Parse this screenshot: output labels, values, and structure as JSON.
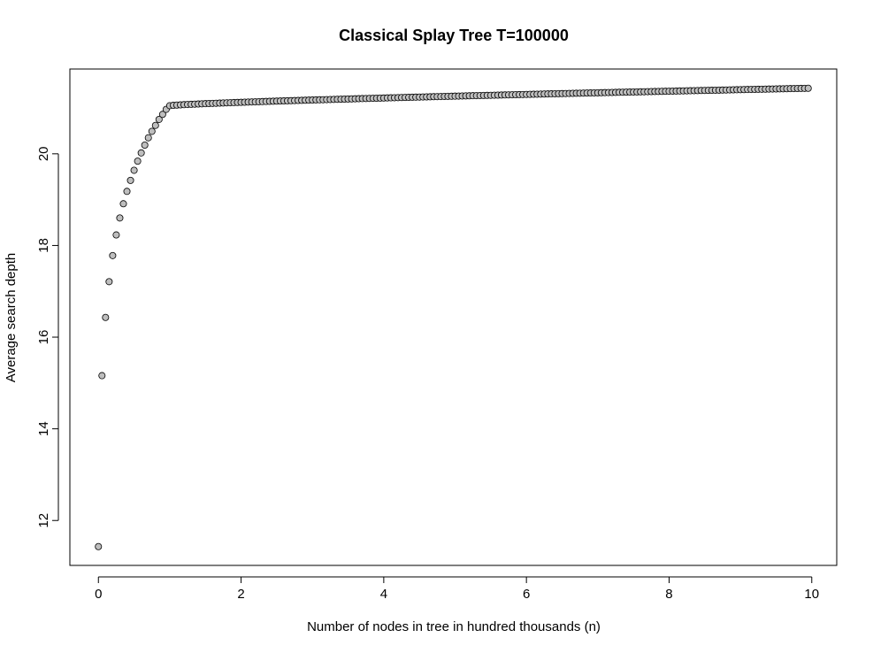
{
  "chart_data": {
    "type": "scatter",
    "title": "Classical Splay Tree T=100000",
    "xlabel": "Number of nodes in tree in hundred thousands (n)",
    "ylabel": "Average search depth",
    "xlim": [
      -0.4,
      10.35
    ],
    "ylim": [
      11.02,
      21.85
    ],
    "xticks": [
      0,
      2,
      4,
      6,
      8,
      10
    ],
    "yticks": [
      12,
      14,
      16,
      18,
      20
    ],
    "xtick_labels": [
      "0",
      "2",
      "4",
      "6",
      "8",
      "10"
    ],
    "ytick_labels": [
      "12",
      "14",
      "16",
      "18",
      "20"
    ],
    "grid": false,
    "legend": "none",
    "point_fill": "#bebebe",
    "point_stroke": "#000000",
    "early_points": [
      [
        0.0,
        11.43
      ],
      [
        0.05,
        15.16
      ],
      [
        0.1,
        16.43
      ],
      [
        0.15,
        17.21
      ],
      [
        0.2,
        17.78
      ],
      [
        0.25,
        18.23
      ],
      [
        0.3,
        18.6
      ],
      [
        0.35,
        18.91
      ],
      [
        0.4,
        19.18
      ],
      [
        0.45,
        19.42
      ],
      [
        0.5,
        19.64
      ],
      [
        0.55,
        19.84
      ],
      [
        0.6,
        20.02
      ],
      [
        0.65,
        20.19
      ],
      [
        0.7,
        20.35
      ],
      [
        0.75,
        20.49
      ],
      [
        0.8,
        20.62
      ],
      [
        0.85,
        20.75
      ],
      [
        0.9,
        20.86
      ],
      [
        0.95,
        20.97
      ]
    ],
    "plateau": {
      "x_start": 1.0,
      "x_end": 9.95,
      "step": 0.05,
      "y_start": 21.05,
      "y_end": 21.43
    }
  }
}
